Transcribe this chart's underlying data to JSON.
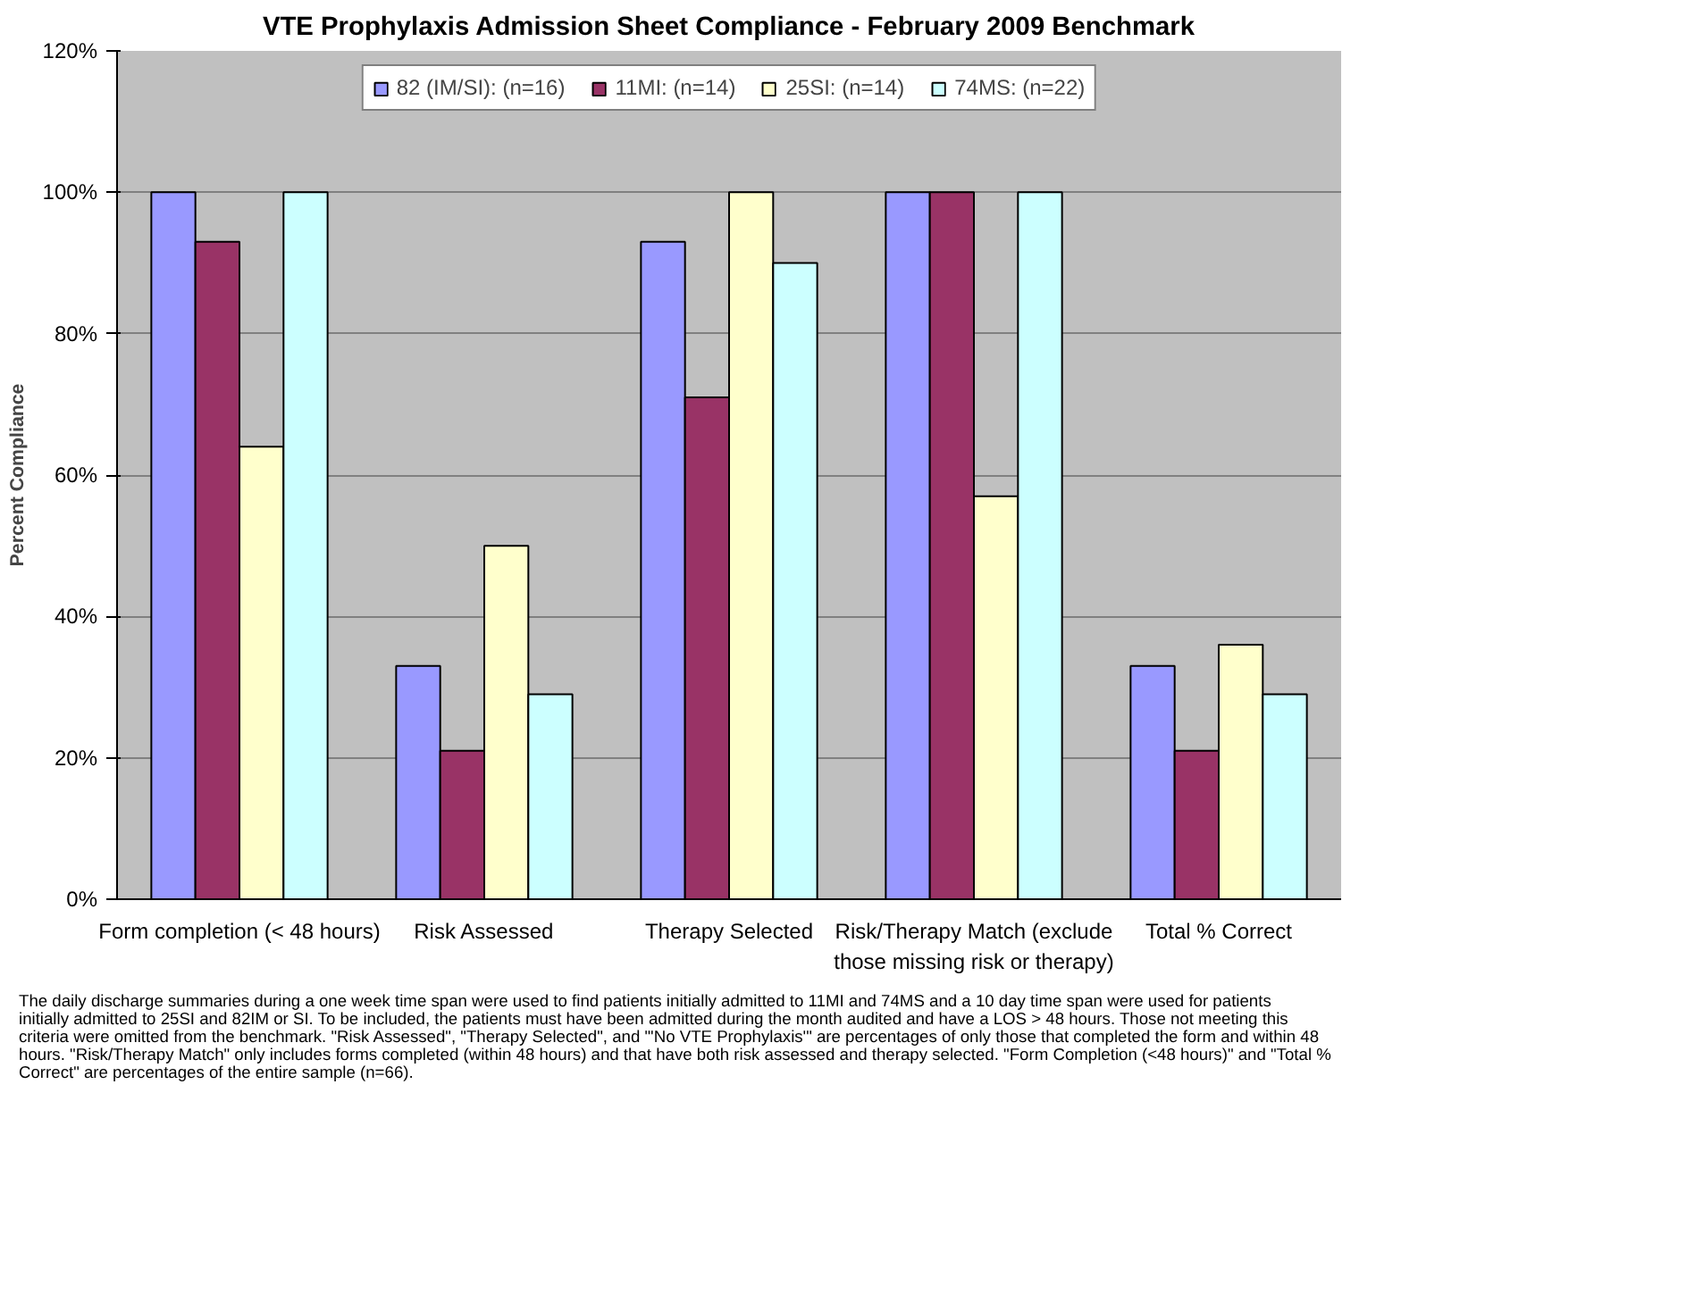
{
  "chart_data": {
    "type": "bar",
    "title": "VTE Prophylaxis Admission Sheet Compliance - February 2009 Benchmark",
    "ylabel": "Percent Compliance",
    "categories": [
      "Form completion (< 48 hours)",
      "Risk Assessed",
      "Therapy Selected",
      "Risk/Therapy Match (exclude those missing risk or therapy)",
      "Total % Correct"
    ],
    "series": [
      {
        "name": "82 (IM/SI): (n=16)",
        "color": "#9999ff",
        "values": [
          100,
          33,
          93,
          100,
          33
        ]
      },
      {
        "name": "11MI: (n=14)",
        "color": "#993366",
        "values": [
          93,
          21,
          71,
          100,
          21
        ]
      },
      {
        "name": "25SI: (n=14)",
        "color": "#ffffcc",
        "values": [
          64,
          50,
          100,
          57,
          36
        ]
      },
      {
        "name": "74MS: (n=22)",
        "color": "#ccffff",
        "values": [
          100,
          29,
          90,
          100,
          29
        ]
      }
    ],
    "ylim": [
      0,
      120
    ],
    "yticks": [
      {
        "value": 0,
        "label": "0%"
      },
      {
        "value": 20,
        "label": "20%"
      },
      {
        "value": 40,
        "label": "40%"
      },
      {
        "value": 60,
        "label": "60%"
      },
      {
        "value": 80,
        "label": "80%"
      },
      {
        "value": 100,
        "label": "100%"
      },
      {
        "value": 120,
        "label": "120%"
      }
    ],
    "grid": "y",
    "legend": "top",
    "annotations": [
      "The daily discharge summaries during a one week time span were used to find patients initially admitted to 11MI and 74MS and a 10 day time span were used for patients initially admitted to 25SI and 82IM or SI.  To be included, the patients must have been admitted during the month audited and have a LOS > 48 hours.  Those not meeting this criteria were omitted from the benchmark.  \"Risk Assessed\", \"Therapy Selected\", and \"'No VTE Prophylaxis'\" are percentages of only those that completed the form and within 48 hours.  \"Risk/Therapy Match\" only includes forms completed (within 48 hours) and that have both risk assessed and therapy selected.  \"Form Completion (<48 hours)\" and \"Total % Correct\" are percentages of the entire sample (n=66)."
    ]
  }
}
